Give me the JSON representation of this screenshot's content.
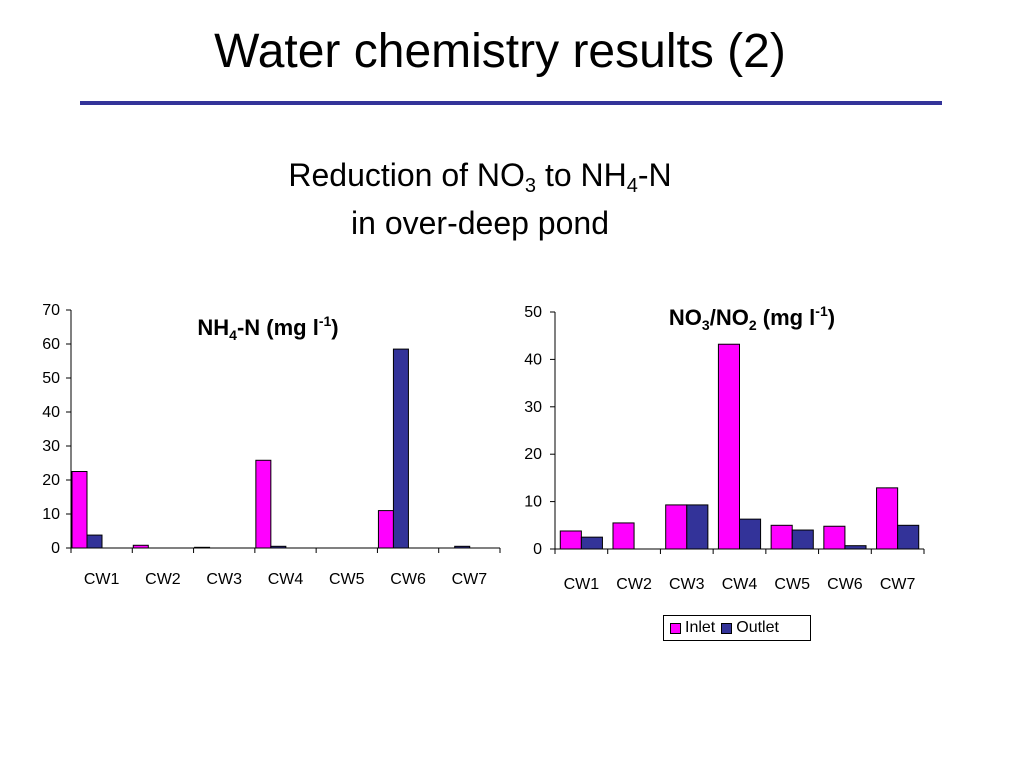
{
  "slide": {
    "title": "Water chemistry results (2)",
    "subtitle_line1_a": "Reduction of NO",
    "subtitle_line1_sub1": "3",
    "subtitle_line1_b": " to NH",
    "subtitle_line1_sub2": "4",
    "subtitle_line1_c": "-N",
    "subtitle_line2": "in over-deep pond",
    "rule_color": "#333399"
  },
  "colors": {
    "inlet": "#FF00FF",
    "outlet": "#333399"
  },
  "legend": {
    "inlet": "Inlet",
    "outlet": "Outlet"
  },
  "chart_data": [
    {
      "type": "bar",
      "title_a": "NH",
      "title_sub": "4",
      "title_b": "-N (mg l",
      "title_sup": "-1",
      "title_c": ")",
      "categories": [
        "CW1",
        "CW2",
        "CW3",
        "CW4",
        "CW5",
        "CW6",
        "CW7"
      ],
      "series": [
        {
          "key": "inlet",
          "values": [
            22.5,
            0.8,
            0.2,
            25.8,
            0,
            11,
            0
          ]
        },
        {
          "key": "outlet",
          "values": [
            3.8,
            0,
            0,
            0.5,
            0,
            58.5,
            0.5
          ]
        }
      ],
      "ylim": [
        0,
        70
      ],
      "yticks": [
        "0",
        "10",
        "20",
        "30",
        "40",
        "50",
        "60",
        "70"
      ],
      "grid": false
    },
    {
      "type": "bar",
      "title_a": "NO",
      "title_sub": "3",
      "title_b": "/NO",
      "title_sub2": "2",
      "title_c": " (mg l",
      "title_sup": "-1",
      "title_d": ")",
      "categories": [
        "CW1",
        "CW2",
        "CW3",
        "CW4",
        "CW5",
        "CW6",
        "CW7"
      ],
      "series": [
        {
          "key": "inlet",
          "values": [
            3.8,
            5.5,
            9.3,
            43.2,
            5,
            4.8,
            12.9
          ]
        },
        {
          "key": "outlet",
          "values": [
            2.5,
            0,
            9.3,
            6.3,
            4,
            0.7,
            5
          ]
        }
      ],
      "ylim": [
        0,
        50
      ],
      "yticks": [
        "0",
        "10",
        "20",
        "30",
        "40",
        "50"
      ],
      "grid": false,
      "legend_position": "bottom"
    }
  ]
}
